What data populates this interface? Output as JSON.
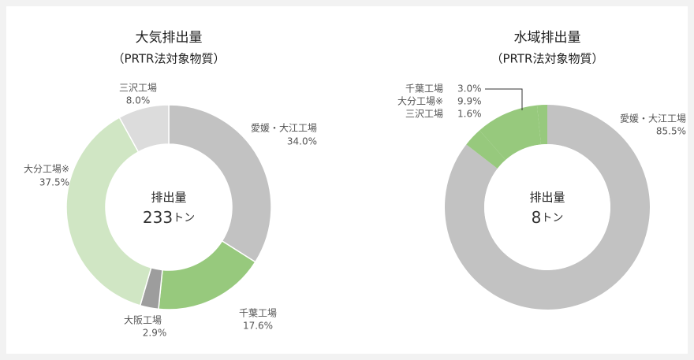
{
  "chart_data": [
    {
      "type": "pie",
      "title": "大気排出量",
      "subtitle": "（PRTR法対象物質）",
      "center_label": "排出量",
      "total": 233,
      "unit": "トン",
      "categories": [
        "愛媛・大江工場",
        "千葉工場",
        "大阪工場",
        "大分工場※",
        "三沢工場"
      ],
      "values": [
        34.0,
        17.6,
        2.9,
        37.5,
        8.0
      ],
      "value_labels": [
        "34.0%",
        "17.6%",
        "2.9%",
        "37.5%",
        "8.0%"
      ],
      "colors": [
        "#c2c2c2",
        "#97c97d",
        "#9d9d9d",
        "#d0e6c4",
        "#dcdcdc"
      ]
    },
    {
      "type": "pie",
      "title": "水域排出量",
      "subtitle": "（PRTR法対象物質）",
      "center_label": "排出量",
      "total": 8,
      "unit": "トン",
      "categories": [
        "愛媛・大江工場",
        "千葉工場",
        "大分工場※",
        "三沢工場"
      ],
      "values": [
        85.5,
        3.0,
        9.9,
        1.6
      ],
      "value_labels": [
        "85.5%",
        "3.0%",
        "9.9%",
        "1.6%"
      ],
      "colors": [
        "#c2c2c2",
        "#97c97d",
        "#97c97d",
        "#97c97d"
      ]
    }
  ]
}
